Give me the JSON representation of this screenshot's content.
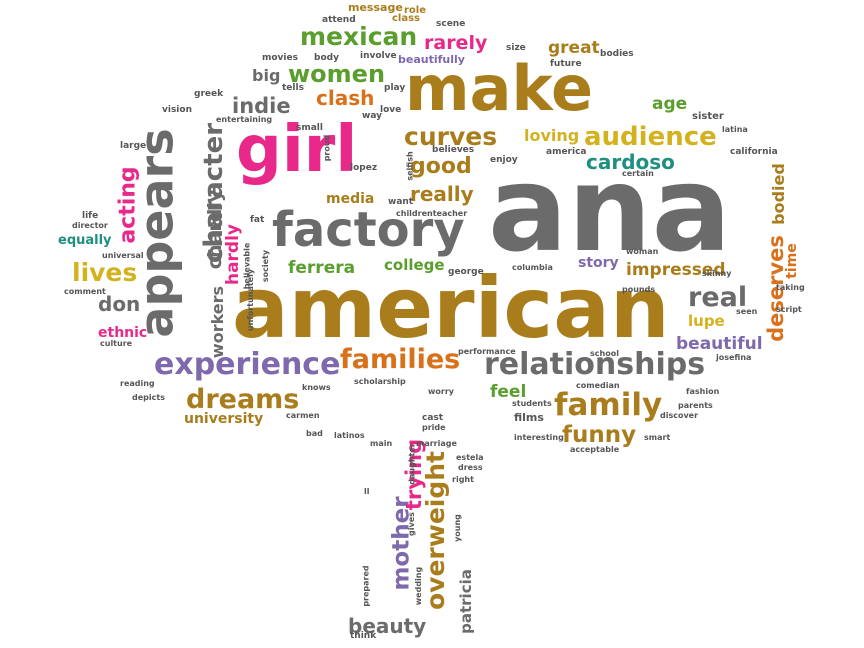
{
  "colors": {
    "gray": "#6b6b6b",
    "gold": "#a97d1c",
    "pink": "#e8298a",
    "green": "#5a9e2d",
    "purple": "#7f69ad",
    "orange": "#d9701a",
    "teal": "#1f8f80",
    "yellow": "#d4b21f",
    "dark": "#555555",
    "red": "#c23f3a"
  },
  "words": [
    {
      "text": "ana",
      "color": "gray"
    },
    {
      "text": "american",
      "color": "gold"
    },
    {
      "text": "make",
      "color": "gold"
    },
    {
      "text": "girl",
      "color": "pink"
    },
    {
      "text": "factory",
      "color": "gray"
    },
    {
      "text": "appears",
      "color": "gray"
    },
    {
      "text": "relationships",
      "color": "gray"
    },
    {
      "text": "experience",
      "color": "purple"
    },
    {
      "text": "families",
      "color": "orange"
    },
    {
      "text": "family",
      "color": "gold"
    },
    {
      "text": "character",
      "color": "gray"
    },
    {
      "text": "overweight",
      "color": "gold"
    },
    {
      "text": "mexican",
      "color": "green"
    },
    {
      "text": "women",
      "color": "green"
    },
    {
      "text": "audience",
      "color": "yellow"
    },
    {
      "text": "curves",
      "color": "gold"
    },
    {
      "text": "dreams",
      "color": "gold"
    },
    {
      "text": "funny",
      "color": "gold"
    },
    {
      "text": "acting",
      "color": "pink"
    },
    {
      "text": "lives",
      "color": "yellow"
    },
    {
      "text": "real",
      "color": "gray"
    },
    {
      "text": "mother",
      "color": "purple"
    },
    {
      "text": "trying",
      "color": "pink"
    },
    {
      "text": "beauty",
      "color": "gray"
    },
    {
      "text": "deserves",
      "color": "orange"
    },
    {
      "text": "good",
      "color": "gold"
    },
    {
      "text": "really",
      "color": "gold"
    },
    {
      "text": "cardoso",
      "color": "teal"
    },
    {
      "text": "indie",
      "color": "gray"
    },
    {
      "text": "clash",
      "color": "orange"
    },
    {
      "text": "rarely",
      "color": "pink"
    },
    {
      "text": "great",
      "color": "gold"
    },
    {
      "text": "beautifully",
      "color": "purple"
    },
    {
      "text": "loving",
      "color": "yellow"
    },
    {
      "text": "age",
      "color": "green"
    },
    {
      "text": "chardly",
      "color": "gray"
    },
    {
      "text": "hardly",
      "color": "pink"
    },
    {
      "text": "workers",
      "color": "gray"
    },
    {
      "text": "don",
      "color": "gray"
    },
    {
      "text": "ethnic",
      "color": "pink"
    },
    {
      "text": "equally",
      "color": "teal"
    },
    {
      "text": "ferrera",
      "color": "green"
    },
    {
      "text": "college",
      "color": "green"
    },
    {
      "text": "story",
      "color": "purple"
    },
    {
      "text": "impressed",
      "color": "gold"
    },
    {
      "text": "lupe",
      "color": "yellow"
    },
    {
      "text": "beautiful",
      "color": "purple"
    },
    {
      "text": "feel",
      "color": "green"
    },
    {
      "text": "media",
      "color": "gold"
    },
    {
      "text": "university",
      "color": "gold"
    },
    {
      "text": "patricia",
      "color": "gray"
    },
    {
      "text": "bodied",
      "color": "gold"
    },
    {
      "text": "time",
      "color": "orange"
    },
    {
      "text": "big",
      "color": "gray"
    },
    {
      "text": "message",
      "color": "gold"
    },
    {
      "text": "role",
      "color": "gold"
    },
    {
      "text": "class",
      "color": "gold"
    },
    {
      "text": "attend",
      "color": "dark"
    },
    {
      "text": "scene",
      "color": "dark"
    },
    {
      "text": "movies",
      "color": "dark"
    },
    {
      "text": "body",
      "color": "dark"
    },
    {
      "text": "involve",
      "color": "dark"
    },
    {
      "text": "size",
      "color": "dark"
    },
    {
      "text": "bodies",
      "color": "dark"
    },
    {
      "text": "future",
      "color": "dark"
    },
    {
      "text": "greek",
      "color": "dark"
    },
    {
      "text": "tells",
      "color": "dark"
    },
    {
      "text": "play",
      "color": "dark"
    },
    {
      "text": "vision",
      "color": "dark"
    },
    {
      "text": "entertaining",
      "color": "dark"
    },
    {
      "text": "small",
      "color": "dark"
    },
    {
      "text": "way",
      "color": "dark"
    },
    {
      "text": "love",
      "color": "dark"
    },
    {
      "text": "proud",
      "color": "dark"
    },
    {
      "text": "large",
      "color": "dark"
    },
    {
      "text": "lopez",
      "color": "dark"
    },
    {
      "text": "believes",
      "color": "dark"
    },
    {
      "text": "selfish",
      "color": "dark"
    },
    {
      "text": "enjoy",
      "color": "dark"
    },
    {
      "text": "america",
      "color": "dark"
    },
    {
      "text": "certain",
      "color": "dark"
    },
    {
      "text": "sister",
      "color": "dark"
    },
    {
      "text": "latina",
      "color": "dark"
    },
    {
      "text": "california",
      "color": "dark"
    },
    {
      "text": "life",
      "color": "dark"
    },
    {
      "text": "director",
      "color": "dark"
    },
    {
      "text": "fat",
      "color": "dark"
    },
    {
      "text": "want",
      "color": "dark"
    },
    {
      "text": "childrenteacher",
      "color": "dark"
    },
    {
      "text": "universal",
      "color": "dark"
    },
    {
      "text": "believable",
      "color": "dark"
    },
    {
      "text": "society",
      "color": "dark"
    },
    {
      "text": "george",
      "color": "dark"
    },
    {
      "text": "columbia",
      "color": "dark"
    },
    {
      "text": "woman",
      "color": "dark"
    },
    {
      "text": "skinny",
      "color": "dark"
    },
    {
      "text": "taking",
      "color": "dark"
    },
    {
      "text": "comment",
      "color": "dark"
    },
    {
      "text": "unfortunately",
      "color": "dark"
    },
    {
      "text": "pounds",
      "color": "dark"
    },
    {
      "text": "seen",
      "color": "dark"
    },
    {
      "text": "script",
      "color": "dark"
    },
    {
      "text": "culture",
      "color": "dark"
    },
    {
      "text": "performance",
      "color": "dark"
    },
    {
      "text": "school",
      "color": "dark"
    },
    {
      "text": "josefina",
      "color": "dark"
    },
    {
      "text": "reading",
      "color": "dark"
    },
    {
      "text": "knows",
      "color": "dark"
    },
    {
      "text": "scholarship",
      "color": "dark"
    },
    {
      "text": "worry",
      "color": "dark"
    },
    {
      "text": "comedian",
      "color": "dark"
    },
    {
      "text": "fashion",
      "color": "dark"
    },
    {
      "text": "depicts",
      "color": "dark"
    },
    {
      "text": "students",
      "color": "dark"
    },
    {
      "text": "parents",
      "color": "dark"
    },
    {
      "text": "carmen",
      "color": "dark"
    },
    {
      "text": "cast",
      "color": "dark"
    },
    {
      "text": "films",
      "color": "dark"
    },
    {
      "text": "discover",
      "color": "dark"
    },
    {
      "text": "pride",
      "color": "dark"
    },
    {
      "text": "bad",
      "color": "dark"
    },
    {
      "text": "latinos",
      "color": "dark"
    },
    {
      "text": "main",
      "color": "dark"
    },
    {
      "text": "marriage",
      "color": "dark"
    },
    {
      "text": "interesting",
      "color": "dark"
    },
    {
      "text": "smart",
      "color": "dark"
    },
    {
      "text": "daughter",
      "color": "dark"
    },
    {
      "text": "acceptable",
      "color": "dark"
    },
    {
      "text": "estela",
      "color": "dark"
    },
    {
      "text": "dress",
      "color": "dark"
    },
    {
      "text": "right",
      "color": "dark"
    },
    {
      "text": "ll",
      "color": "dark"
    },
    {
      "text": "gives",
      "color": "dark"
    },
    {
      "text": "young",
      "color": "dark"
    },
    {
      "text": "prepared",
      "color": "dark"
    },
    {
      "text": "wedding",
      "color": "dark"
    },
    {
      "text": "think",
      "color": "dark"
    },
    {
      "text": "olin",
      "color": "dark"
    }
  ]
}
